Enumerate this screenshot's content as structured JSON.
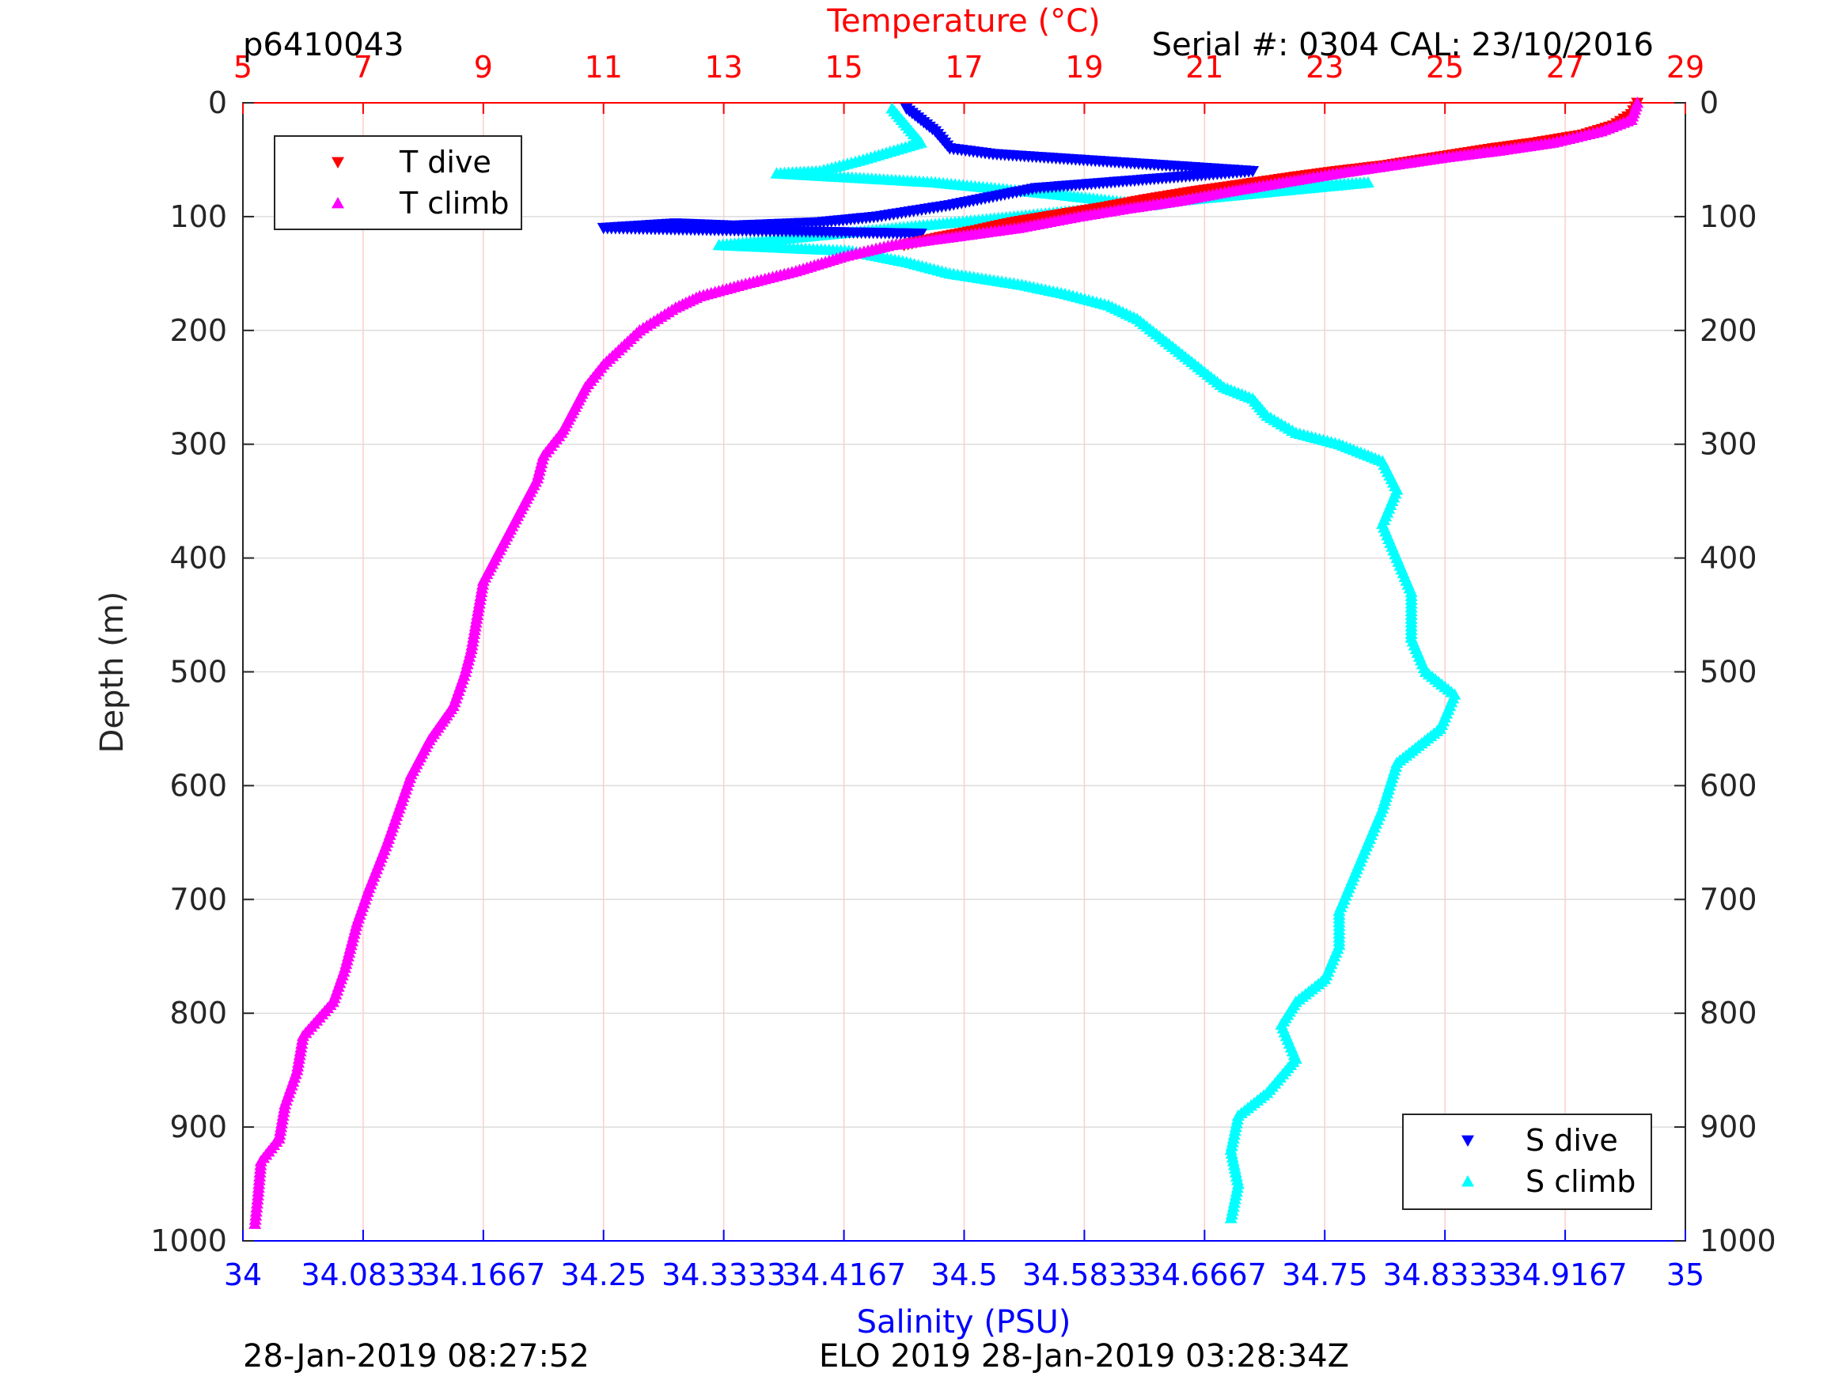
{
  "header": {
    "profile_id": "p6410043",
    "serial": "Serial #: 0304  CAL: 23/10/2016"
  },
  "footer": {
    "left_time": "28-Jan-2019 08:27:52",
    "center_text": "ELO 2019 28-Jan-2019 03:28:34Z"
  },
  "colors": {
    "t_dive": "#ff0000",
    "t_climb": "#ff00ff",
    "s_dive": "#0000ff",
    "s_climb": "#00ffff",
    "temp_axis": "#ff0000",
    "sal_axis": "#0000ff",
    "grid_temp": "#ffcccc",
    "grid_depth": "#dddddd"
  },
  "chart_data": {
    "type": "scatter",
    "ylabel": "Depth (m)",
    "top_axis_label": "Temperature (°C)",
    "bottom_axis_label": "Salinity (PSU)",
    "ylim": [
      0,
      1000
    ],
    "y_reversed": true,
    "temp_lim": [
      5,
      29
    ],
    "sal_lim": [
      34,
      35
    ],
    "y_ticks": [
      "0",
      "100",
      "200",
      "300",
      "400",
      "500",
      "600",
      "700",
      "800",
      "900",
      "1000"
    ],
    "temp_ticks": [
      "5",
      "7",
      "9",
      "11",
      "13",
      "15",
      "17",
      "19",
      "21",
      "23",
      "25",
      "27",
      "29"
    ],
    "sal_ticks": [
      "34",
      "34.0833",
      "34.1667",
      "34.25",
      "34.3333",
      "34.4167",
      "34.5",
      "34.5833",
      "34.6667",
      "34.75",
      "34.8333",
      "34.9167",
      "35"
    ],
    "legends": [
      {
        "position": "top-left",
        "entries": [
          "T dive",
          "T climb"
        ]
      },
      {
        "position": "bottom-right",
        "entries": [
          "S dive",
          "S climb"
        ]
      }
    ],
    "series": [
      {
        "name": "T dive",
        "axis": "temperature",
        "marker": "triangle-down",
        "points": [
          [
            28.2,
            0
          ],
          [
            28.1,
            10
          ],
          [
            27.8,
            20
          ],
          [
            27.3,
            28
          ],
          [
            26.5,
            35
          ],
          [
            25.8,
            40
          ],
          [
            25.2,
            45
          ],
          [
            24.6,
            50
          ],
          [
            24.0,
            55
          ],
          [
            23.2,
            60
          ],
          [
            22.5,
            65
          ],
          [
            21.6,
            72
          ],
          [
            20.8,
            78
          ],
          [
            20.0,
            85
          ],
          [
            19.3,
            92
          ],
          [
            18.6,
            98
          ],
          [
            17.8,
            105
          ],
          [
            17.2,
            112
          ],
          [
            16.6,
            118
          ],
          [
            16.0,
            125
          ]
        ]
      },
      {
        "name": "T climb",
        "axis": "temperature",
        "marker": "triangle-up",
        "points": [
          [
            28.2,
            0
          ],
          [
            28.1,
            15
          ],
          [
            27.6,
            25
          ],
          [
            26.8,
            35
          ],
          [
            25.9,
            42
          ],
          [
            25.0,
            48
          ],
          [
            24.1,
            55
          ],
          [
            23.2,
            62
          ],
          [
            22.3,
            70
          ],
          [
            21.4,
            78
          ],
          [
            20.6,
            86
          ],
          [
            19.7,
            93
          ],
          [
            18.9,
            100
          ],
          [
            17.9,
            110
          ],
          [
            16.8,
            118
          ],
          [
            15.8,
            125
          ],
          [
            15.0,
            135
          ],
          [
            14.2,
            148
          ],
          [
            13.3,
            160
          ],
          [
            12.6,
            170
          ],
          [
            12.2,
            180
          ],
          [
            11.9,
            190
          ],
          [
            11.6,
            200
          ],
          [
            11.3,
            215
          ],
          [
            11.0,
            230
          ],
          [
            10.7,
            250
          ],
          [
            10.5,
            270
          ],
          [
            10.3,
            290
          ],
          [
            10.0,
            310
          ],
          [
            9.9,
            330
          ],
          [
            9.6,
            360
          ],
          [
            9.3,
            390
          ],
          [
            9.0,
            420
          ],
          [
            8.9,
            450
          ],
          [
            8.8,
            480
          ],
          [
            8.7,
            500
          ],
          [
            8.5,
            530
          ],
          [
            8.1,
            560
          ],
          [
            7.8,
            590
          ],
          [
            7.6,
            620
          ],
          [
            7.4,
            650
          ],
          [
            7.1,
            690
          ],
          [
            6.9,
            720
          ],
          [
            6.7,
            760
          ],
          [
            6.5,
            790
          ],
          [
            6.0,
            820
          ],
          [
            5.9,
            850
          ],
          [
            5.7,
            880
          ],
          [
            5.6,
            910
          ],
          [
            5.3,
            930
          ],
          [
            5.25,
            960
          ],
          [
            5.2,
            985
          ]
        ]
      },
      {
        "name": "S dive",
        "axis": "salinity",
        "marker": "triangle-down",
        "points": [
          [
            34.46,
            5
          ],
          [
            34.47,
            15
          ],
          [
            34.48,
            25
          ],
          [
            34.49,
            40
          ],
          [
            34.52,
            45
          ],
          [
            34.58,
            50
          ],
          [
            34.64,
            55
          ],
          [
            34.7,
            60
          ],
          [
            34.55,
            75
          ],
          [
            34.49,
            90
          ],
          [
            34.44,
            100
          ],
          [
            34.4,
            105
          ],
          [
            34.34,
            108
          ],
          [
            34.3,
            106
          ],
          [
            34.25,
            110
          ],
          [
            34.47,
            115
          ]
        ]
      },
      {
        "name": "S climb",
        "axis": "salinity",
        "marker": "triangle-up",
        "points": [
          [
            34.45,
            5
          ],
          [
            34.46,
            20
          ],
          [
            34.47,
            35
          ],
          [
            34.43,
            50
          ],
          [
            34.4,
            60
          ],
          [
            34.37,
            62
          ],
          [
            34.48,
            70
          ],
          [
            34.56,
            80
          ],
          [
            34.63,
            90
          ],
          [
            34.7,
            75
          ],
          [
            34.78,
            70
          ],
          [
            34.33,
            125
          ],
          [
            34.42,
            130
          ],
          [
            34.46,
            140
          ],
          [
            34.49,
            150
          ],
          [
            34.54,
            160
          ],
          [
            34.57,
            168
          ],
          [
            34.6,
            178
          ],
          [
            34.62,
            190
          ],
          [
            34.64,
            210
          ],
          [
            34.66,
            230
          ],
          [
            34.68,
            250
          ],
          [
            34.7,
            260
          ],
          [
            34.71,
            275
          ],
          [
            34.73,
            290
          ],
          [
            34.76,
            300
          ],
          [
            34.79,
            315
          ],
          [
            34.8,
            340
          ],
          [
            34.79,
            370
          ],
          [
            34.8,
            400
          ],
          [
            34.81,
            430
          ],
          [
            34.81,
            470
          ],
          [
            34.82,
            500
          ],
          [
            34.84,
            520
          ],
          [
            34.83,
            550
          ],
          [
            34.8,
            580
          ],
          [
            34.79,
            620
          ],
          [
            34.78,
            650
          ],
          [
            34.77,
            680
          ],
          [
            34.76,
            710
          ],
          [
            34.76,
            740
          ],
          [
            34.75,
            770
          ],
          [
            34.73,
            790
          ],
          [
            34.72,
            810
          ],
          [
            34.73,
            840
          ],
          [
            34.71,
            870
          ],
          [
            34.69,
            890
          ],
          [
            34.685,
            920
          ],
          [
            34.69,
            950
          ],
          [
            34.685,
            980
          ]
        ]
      }
    ]
  }
}
